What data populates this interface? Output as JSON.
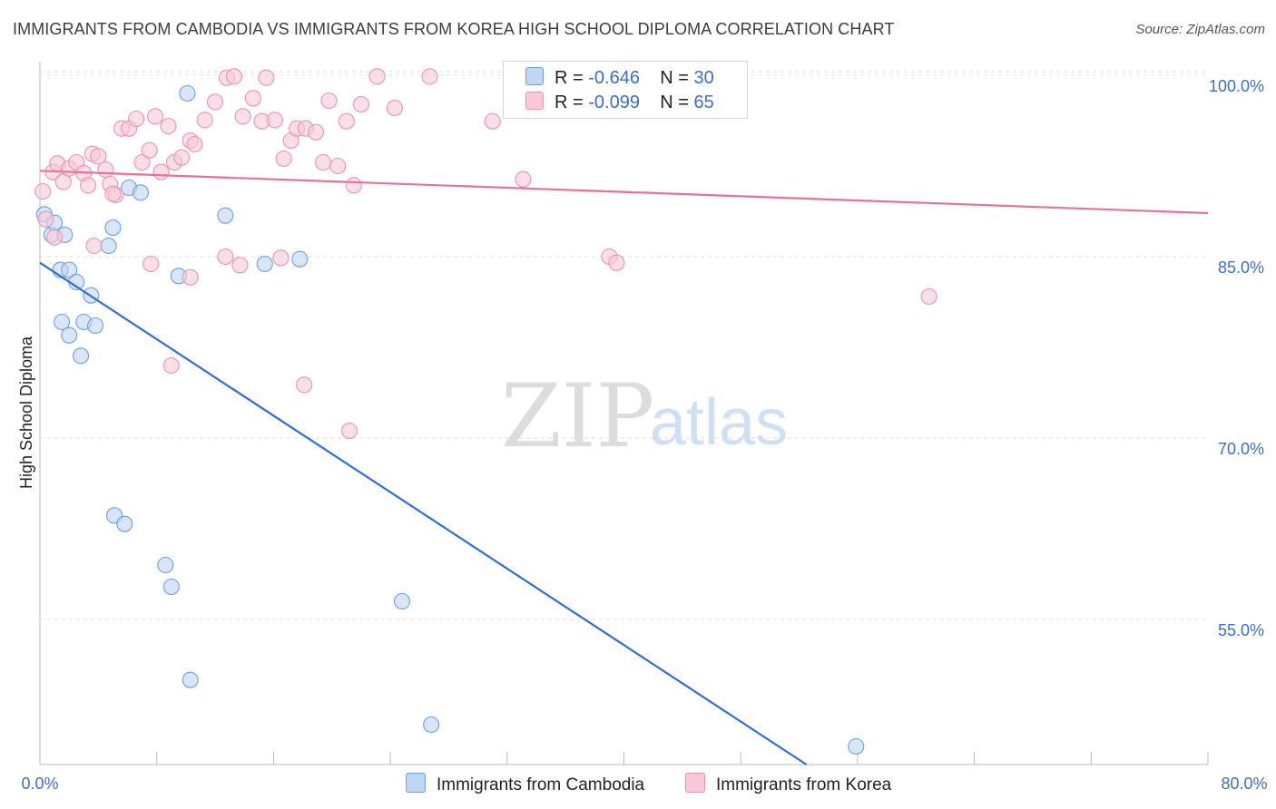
{
  "header": {
    "title": "IMMIGRANTS FROM CAMBODIA VS IMMIGRANTS FROM KOREA HIGH SCHOOL DIPLOMA CORRELATION CHART",
    "source": "Source: ZipAtlas.com"
  },
  "watermark": {
    "zip": "ZIP",
    "atlas": "atlas"
  },
  "legend": {
    "rows": [
      {
        "r_label": "R =",
        "r_value": "-0.646",
        "n_label": "N =",
        "n_value": "30",
        "color": "#a9c8f0"
      },
      {
        "r_label": "R =",
        "r_value": "-0.099",
        "n_label": "N =",
        "n_value": "65",
        "color": "#f7b9cc"
      }
    ]
  },
  "bottom_legend": {
    "items": [
      {
        "label": "Immigrants from Cambodia",
        "color": "#a9c8f0"
      },
      {
        "label": "Immigrants from Korea",
        "color": "#f7b9cc"
      }
    ]
  },
  "chart_data": {
    "type": "scatter",
    "xlabel": "",
    "ylabel": "High School Diploma",
    "xlim": [
      0,
      80
    ],
    "ylim": [
      43,
      103
    ],
    "x_tick_labels": [
      "0.0%",
      "80.0%"
    ],
    "y_ticks": [
      55,
      70,
      85,
      100
    ],
    "y_tick_labels": [
      "55.0%",
      "70.0%",
      "85.0%",
      "100.0%"
    ],
    "grid": true,
    "series": [
      {
        "name": "Immigrants from Cambodia",
        "color": "#6a9fe0",
        "fill": "#bfd6f5",
        "trend": {
          "x": [
            0,
            52.5
          ],
          "y": [
            84.5,
            43.0
          ],
          "color": "#2f6fcf"
        },
        "x": [
          0.3,
          0.8,
          1.0,
          1.7,
          1.4,
          2.0,
          2.5,
          3.0,
          3.5,
          3.8,
          4.7,
          5.0,
          6.1,
          6.9,
          9.5,
          10.1,
          12.7,
          15.4,
          17.8,
          1.5,
          2.0,
          2.8,
          5.1,
          5.8,
          8.6,
          9.0,
          10.3,
          24.8,
          26.8,
          55.9
        ],
        "y": [
          88.5,
          86.8,
          87.8,
          86.8,
          83.9,
          83.9,
          82.9,
          79.6,
          81.8,
          79.3,
          85.9,
          87.4,
          90.7,
          90.3,
          83.4,
          98.5,
          88.4,
          84.4,
          84.8,
          79.6,
          78.5,
          76.8,
          63.6,
          62.9,
          59.5,
          57.7,
          50.0,
          56.5,
          46.3,
          44.5
        ]
      },
      {
        "name": "Immigrants from Korea",
        "color": "#ee91ae",
        "fill": "#f9c9d7",
        "trend": {
          "x": [
            0,
            80
          ],
          "y": [
            92.1,
            88.6
          ],
          "color": "#e8709a"
        },
        "x": [
          0.2,
          0.4,
          0.9,
          1.2,
          1.6,
          2.0,
          2.5,
          3.0,
          3.3,
          3.6,
          4.0,
          4.5,
          4.8,
          5.2,
          5.6,
          6.1,
          6.6,
          7.0,
          7.5,
          7.9,
          8.3,
          8.8,
          9.2,
          9.7,
          10.3,
          10.6,
          11.3,
          12.0,
          12.8,
          13.3,
          13.9,
          14.6,
          15.2,
          15.5,
          16.1,
          16.7,
          17.2,
          17.6,
          18.2,
          18.9,
          19.4,
          19.8,
          20.4,
          21.0,
          21.5,
          22.0,
          23.1,
          24.3,
          26.7,
          31.0,
          33.1,
          39.0,
          39.5,
          1.0,
          3.7,
          5.0,
          7.6,
          9.0,
          10.3,
          12.7,
          13.7,
          16.5,
          18.1,
          21.2,
          60.9
        ],
        "y": [
          90.4,
          88.1,
          92.0,
          92.7,
          91.2,
          92.3,
          92.8,
          91.9,
          90.9,
          93.5,
          93.3,
          92.2,
          91.0,
          90.1,
          95.6,
          95.6,
          96.4,
          92.8,
          93.8,
          96.6,
          92.0,
          95.8,
          92.8,
          93.2,
          94.6,
          94.3,
          96.3,
          97.8,
          99.8,
          99.9,
          96.6,
          98.1,
          96.2,
          99.8,
          96.3,
          93.1,
          94.6,
          95.6,
          95.6,
          95.3,
          92.8,
          97.9,
          92.5,
          96.2,
          90.9,
          97.6,
          99.9,
          97.3,
          99.9,
          96.2,
          91.4,
          85.0,
          84.5,
          86.6,
          85.9,
          90.2,
          84.4,
          76.0,
          83.3,
          85.0,
          84.3,
          84.9,
          74.4,
          70.6,
          81.7
        ]
      }
    ]
  }
}
